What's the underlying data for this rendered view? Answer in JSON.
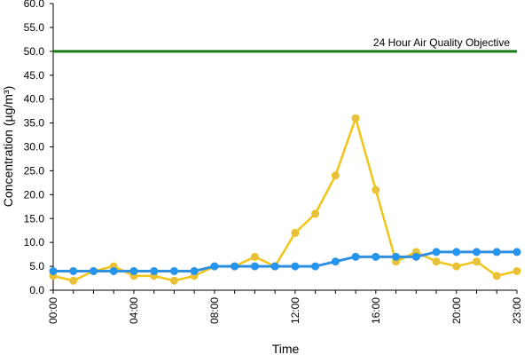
{
  "chart_data": {
    "type": "line",
    "xlabel": "Time",
    "ylabel": "Concentration (µg/m³)",
    "ylim": [
      0,
      60
    ],
    "yticks": [
      "0.0",
      "5.0",
      "10.0",
      "15.0",
      "20.0",
      "25.0",
      "30.0",
      "35.0",
      "40.0",
      "45.0",
      "50.0",
      "55.0",
      "60.0"
    ],
    "xlim": [
      0,
      23
    ],
    "xticks": [
      {
        "x": 0,
        "label": "00:00"
      },
      {
        "x": 4,
        "label": "04:00"
      },
      {
        "x": 8,
        "label": "08:00"
      },
      {
        "x": 12,
        "label": "12:00"
      },
      {
        "x": 16,
        "label": "16:00"
      },
      {
        "x": 20,
        "label": "20:00"
      },
      {
        "x": 23,
        "label": "23:00"
      }
    ],
    "grid": false,
    "x": [
      0,
      1,
      2,
      3,
      4,
      5,
      6,
      7,
      8,
      9,
      10,
      11,
      12,
      13,
      14,
      15,
      16,
      17,
      18,
      19,
      20,
      21,
      22,
      23
    ],
    "series": [
      {
        "color": "#F0C419",
        "marker_color": "#E8C040",
        "values": [
          3,
          2,
          4,
          5,
          3,
          3,
          2,
          3,
          5,
          5,
          7,
          5,
          12,
          16,
          24,
          36,
          21,
          6,
          8,
          6,
          5,
          6,
          3,
          4
        ]
      },
      {
        "color": "#2F8FE0",
        "marker_color": "#2196F3",
        "values": [
          4,
          4,
          4,
          4,
          4,
          4,
          4,
          4,
          5,
          5,
          5,
          5,
          5,
          5,
          6,
          7,
          7,
          7,
          7,
          8,
          8,
          8,
          8,
          8
        ]
      }
    ],
    "reference_line": {
      "value": 50,
      "label": "24 Hour Air Quality Objective",
      "color": "#1A7A1A"
    }
  }
}
